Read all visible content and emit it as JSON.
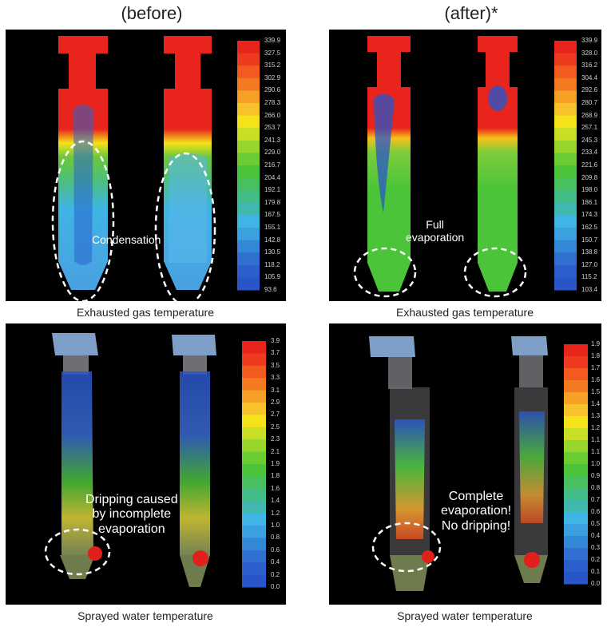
{
  "headers": {
    "before": "(before)",
    "after": "(after)*"
  },
  "captions": {
    "top_left": "Exhausted gas temperature",
    "top_right": "Exhausted gas temperature",
    "bottom_left": "Sprayed water temperature",
    "bottom_right": "Sprayed water temperature"
  },
  "annotations": {
    "condensation": "Condensation",
    "full_evaporation_1": "Full",
    "full_evaporation_2": "evaporation",
    "dripping_1": "Dripping caused",
    "dripping_2": "by incomplete",
    "dripping_3": "evaporation",
    "complete_1": "Complete",
    "complete_2": "evaporation!",
    "complete_3": "No dripping!"
  },
  "legends": {
    "top_left": [
      "339.9",
      "327.5",
      "315.2",
      "302.9",
      "290.6",
      "278.3",
      "266.0",
      "253.7",
      "241.3",
      "229.0",
      "216.7",
      "204.4",
      "192.1",
      "179.8",
      "167.5",
      "155.1",
      "142.8",
      "130.5",
      "118.2",
      "105.9",
      "93.6"
    ],
    "top_right": [
      "339.9",
      "328.0",
      "316.2",
      "304.4",
      "292.6",
      "280.7",
      "268.9",
      "257.1",
      "245.3",
      "233.4",
      "221.6",
      "209.8",
      "198.0",
      "186.1",
      "174.3",
      "162.5",
      "150.7",
      "138.8",
      "127.0",
      "115.2",
      "103.4"
    ],
    "bottom_left": [
      "3.9",
      "3.7",
      "3.5",
      "3.3",
      "3.1",
      "2.9",
      "2.7",
      "2.5",
      "2.3",
      "2.1",
      "1.9",
      "1.8",
      "1.6",
      "1.4",
      "1.2",
      "1.0",
      "0.8",
      "0.6",
      "0.4",
      "0.2",
      "0.0"
    ],
    "bottom_right": [
      "1.9",
      "1.8",
      "1.7",
      "1.6",
      "1.5",
      "1.4",
      "1.3",
      "1.2",
      "1.1",
      "1.1",
      "1.0",
      "0.9",
      "0.8",
      "0.7",
      "0.6",
      "0.5",
      "0.4",
      "0.3",
      "0.2",
      "0.1",
      "0.0"
    ]
  },
  "colors": {
    "hot": "#e8241c",
    "warm": "#f5e31a",
    "mid": "#4cc43a",
    "cool": "#3fb4e6",
    "cold": "#2a55c8"
  }
}
